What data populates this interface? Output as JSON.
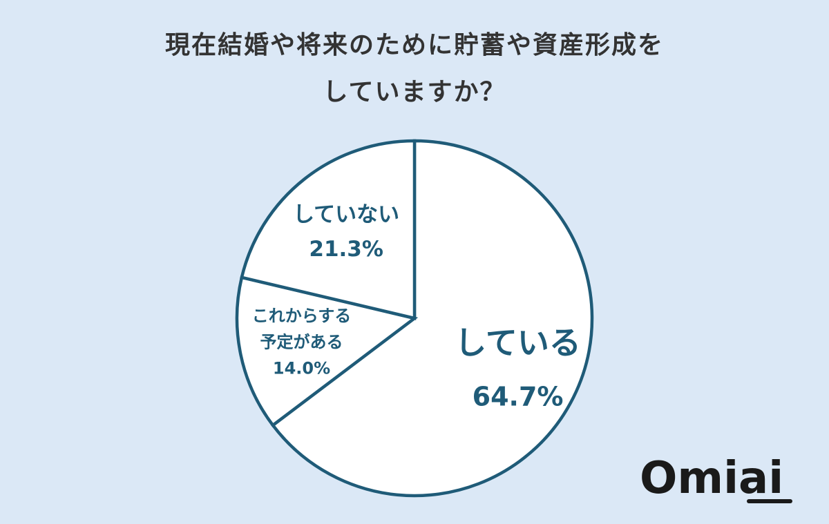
{
  "title": {
    "line1": "現在結婚や将来のために貯蓄や資産形成を",
    "line2": "していますか？"
  },
  "chart_data": {
    "type": "pie",
    "title": "現在結婚や将来のために貯蓄や資産形成をしていますか？",
    "slices": [
      {
        "label": "している",
        "value": 64.7,
        "value_label": "64.7%"
      },
      {
        "label": "これからする予定がある",
        "label_lines": [
          "これからする",
          "予定がある"
        ],
        "value": 14.0,
        "value_label": "14.0%"
      },
      {
        "label": "していない",
        "value": 21.3,
        "value_label": "21.3%"
      }
    ],
    "colors": {
      "fill": "#ffffff",
      "stroke": "#1f5b78",
      "label": "#1f5b78"
    }
  },
  "logo": {
    "text": "Omiai",
    "color": "#1a1a1a"
  }
}
